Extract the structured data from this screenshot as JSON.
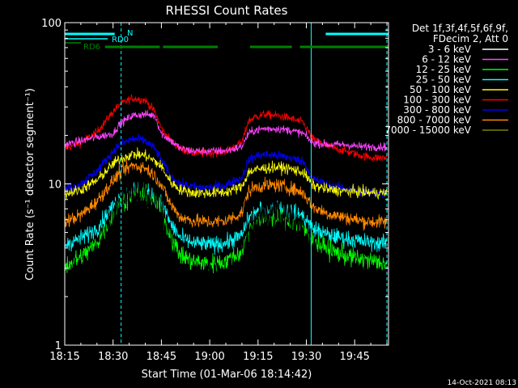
{
  "chart_data": {
    "type": "line",
    "title": "RHESSI Count Rates",
    "xlabel": "Start Time (01-Mar-06 18:14:42)",
    "ylabel": "Count Rate (s⁻¹ detector segment⁻¹)",
    "y_scale": "log",
    "ylim": [
      1,
      100
    ],
    "xlim_minutes": [
      0,
      100.5
    ],
    "x_ticks": [
      {
        "label": "18:15",
        "minutes": 0
      },
      {
        "label": "18:30",
        "minutes": 15
      },
      {
        "label": "18:45",
        "minutes": 30
      },
      {
        "label": "19:00",
        "minutes": 45
      },
      {
        "label": "19:15",
        "minutes": 60
      },
      {
        "label": "19:30",
        "minutes": 75
      },
      {
        "label": "19:45",
        "minutes": 90
      }
    ],
    "y_ticks": [
      {
        "label": "1",
        "value": 1
      },
      {
        "label": "10",
        "value": 10
      },
      {
        "label": "100",
        "value": 100
      }
    ],
    "legend": {
      "placement": "right",
      "header": [
        "Det 1f,3f,4f,5f,6f,9f,",
        "FDecim 2, Att 0"
      ]
    },
    "profile_points_minutes": [
      0,
      5,
      10,
      15,
      17,
      21,
      25,
      28,
      30,
      33,
      36,
      40,
      45,
      50,
      55,
      57,
      59,
      62,
      66,
      70,
      74,
      77,
      82,
      87,
      92,
      96,
      100
    ],
    "series": [
      {
        "name": "3 - 6 keV",
        "color": "#ffffff",
        "noise": 0.18,
        "values": [
          2.1,
          2.4,
          3.2,
          5.5,
          7.2,
          9.5,
          9.0,
          7.4,
          6.0,
          3.6,
          2.7,
          2.5,
          2.5,
          2.4,
          3.0,
          4.6,
          5.8,
          6.5,
          6.8,
          6.3,
          5.2,
          3.5,
          2.8,
          2.6,
          2.5,
          2.4,
          2.3
        ]
      },
      {
        "name": "6 - 12 keV",
        "color": "#ff44ff",
        "noise": 0.03,
        "values": [
          17.5,
          18.5,
          19.5,
          20.5,
          23.5,
          26.5,
          27.0,
          26.5,
          20.5,
          18.5,
          16.5,
          16.0,
          16.0,
          16.0,
          17.0,
          20.5,
          21.5,
          22.0,
          22.0,
          21.5,
          20.5,
          18.0,
          17.5,
          17.5,
          17.0,
          17.0,
          17.0
        ]
      },
      {
        "name": "12 - 25 keV",
        "color": "#00ff00",
        "noise": 0.07,
        "values": [
          3.1,
          3.5,
          4.3,
          6.3,
          7.4,
          8.8,
          8.5,
          7.6,
          6.8,
          4.6,
          3.6,
          3.3,
          3.2,
          3.3,
          3.8,
          5.1,
          5.8,
          6.1,
          6.2,
          5.9,
          5.3,
          4.4,
          3.9,
          3.6,
          3.4,
          3.3,
          3.2
        ]
      },
      {
        "name": "25 - 50 keV",
        "color": "#00ffff",
        "noise": 0.06,
        "values": [
          4.2,
          4.6,
          5.3,
          7.3,
          8.2,
          9.3,
          9.0,
          8.2,
          7.6,
          5.6,
          4.6,
          4.3,
          4.2,
          4.3,
          4.8,
          6.1,
          6.7,
          7.0,
          7.1,
          6.8,
          6.3,
          5.3,
          4.8,
          4.6,
          4.4,
          4.3,
          4.3
        ]
      },
      {
        "name": "50 - 100 keV",
        "color": "#ffff00",
        "noise": 0.04,
        "values": [
          8.7,
          9.2,
          10.5,
          13.3,
          14.2,
          15.3,
          15.0,
          13.8,
          12.8,
          10.2,
          9.2,
          8.8,
          8.8,
          8.9,
          9.6,
          11.8,
          12.2,
          12.5,
          12.7,
          12.4,
          11.8,
          9.8,
          9.2,
          9.0,
          8.9,
          8.8,
          8.8
        ]
      },
      {
        "name": "100 - 300 keV",
        "color": "#ff0000",
        "noise": 0.03,
        "values": [
          16.5,
          18.0,
          21.0,
          28.0,
          31.0,
          34.0,
          33.0,
          28.0,
          22.0,
          18.5,
          16.5,
          15.5,
          15.5,
          16.0,
          18.0,
          24.5,
          26.0,
          27.0,
          26.5,
          25.5,
          24.0,
          19.0,
          17.0,
          16.0,
          15.0,
          14.5,
          14.5
        ]
      },
      {
        "name": "300 - 800 keV",
        "color": "#0000ff",
        "noise": 0.035,
        "values": [
          9.2,
          10.0,
          12.0,
          16.0,
          17.5,
          19.0,
          18.5,
          16.5,
          14.0,
          11.0,
          10.0,
          9.5,
          9.5,
          9.8,
          11.0,
          14.0,
          14.8,
          15.2,
          15.0,
          14.5,
          13.8,
          10.8,
          9.8,
          9.4,
          9.0,
          8.8,
          8.8
        ]
      },
      {
        "name": "800 - 7000 keV",
        "color": "#ff8800",
        "noise": 0.05,
        "values": [
          5.8,
          6.4,
          7.8,
          10.5,
          11.7,
          13.0,
          12.6,
          11.2,
          9.8,
          7.4,
          6.2,
          5.9,
          5.8,
          5.9,
          6.6,
          9.0,
          9.5,
          9.8,
          9.8,
          9.4,
          8.8,
          7.2,
          6.5,
          6.2,
          5.9,
          5.8,
          5.8
        ]
      },
      {
        "name": "7000 - 15000 keV",
        "color": "#808000",
        "noise": 0.0,
        "values": []
      }
    ],
    "annotations": {
      "RD0": {
        "label": "RD0",
        "color": "#00ffff",
        "segments_minutes": [
          [
            0,
            15.5
          ],
          [
            81,
            100.5
          ]
        ]
      },
      "RD6": {
        "label": "RD6",
        "color": "#008000",
        "segments_minutes": [
          [
            12.5,
            29.5
          ],
          [
            30.5,
            47.5
          ],
          [
            57.5,
            70.5
          ],
          [
            73,
            100.5
          ]
        ]
      },
      "N": {
        "label": "N",
        "color": "#00ffff"
      },
      "vlines_solid_minutes": [
        0,
        76.5
      ],
      "vlines_dashed_minutes": [
        17.5,
        100
      ]
    }
  },
  "footer": {
    "timestamp": "14-Oct-2021 08:13"
  }
}
